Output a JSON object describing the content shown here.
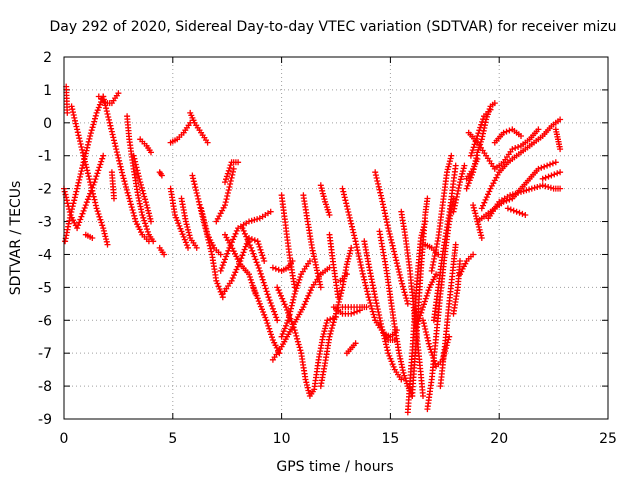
{
  "chart_data": {
    "type": "scatter",
    "title": "Day 292 of 2020, Sidereal Day-to-day VTEC variation (SDTVAR) for receiver mizu",
    "xlabel": "GPS time / hours",
    "ylabel": "SDTVAR / TECUs",
    "xlim": [
      0,
      25
    ],
    "ylim": [
      -9,
      2
    ],
    "xticks": [
      "0",
      "5",
      "10",
      "15",
      "20",
      "25"
    ],
    "yticks": [
      "-9",
      "-8",
      "-7",
      "-6",
      "-5",
      "-4",
      "-3",
      "-2",
      "-1",
      "0",
      "1",
      "2"
    ],
    "grid": true,
    "marker": "+",
    "color": "#ff0000",
    "tracks": [
      [
        [
          0.0,
          -2.0
        ],
        [
          0.3,
          -2.8
        ],
        [
          0.6,
          -3.2
        ],
        [
          1.0,
          -2.5
        ],
        [
          1.4,
          -1.8
        ],
        [
          1.8,
          -1.0
        ]
      ],
      [
        [
          0.05,
          -3.6
        ],
        [
          0.3,
          -2.8
        ],
        [
          0.6,
          -2.0
        ],
        [
          0.9,
          -1.2
        ],
        [
          1.2,
          -0.4
        ],
        [
          1.5,
          0.3
        ],
        [
          1.8,
          0.8
        ]
      ],
      [
        [
          0.1,
          1.1
        ],
        [
          0.15,
          0.3
        ]
      ],
      [
        [
          0.35,
          0.5
        ],
        [
          0.6,
          -0.2
        ],
        [
          0.9,
          -1.0
        ],
        [
          1.2,
          -1.8
        ],
        [
          1.5,
          -2.6
        ],
        [
          1.8,
          -3.2
        ],
        [
          2.0,
          -3.7
        ]
      ],
      [
        [
          1.0,
          -3.4
        ],
        [
          1.3,
          -3.5
        ]
      ],
      [
        [
          1.6,
          0.8
        ],
        [
          1.9,
          0.6
        ],
        [
          2.2,
          0.6
        ],
        [
          2.5,
          0.9
        ]
      ],
      [
        [
          1.8,
          0.8
        ],
        [
          2.1,
          0.0
        ],
        [
          2.4,
          -0.8
        ],
        [
          2.7,
          -1.6
        ],
        [
          3.0,
          -2.3
        ],
        [
          3.3,
          -3.0
        ],
        [
          3.6,
          -3.4
        ],
        [
          3.9,
          -3.6
        ]
      ],
      [
        [
          2.2,
          -1.5
        ],
        [
          2.3,
          -2.3
        ]
      ],
      [
        [
          2.9,
          0.2
        ],
        [
          3.0,
          -0.5
        ],
        [
          3.2,
          -1.4
        ],
        [
          3.4,
          -2.2
        ],
        [
          3.6,
          -2.8
        ],
        [
          3.9,
          -3.4
        ],
        [
          4.1,
          -3.6
        ]
      ],
      [
        [
          3.5,
          -0.5
        ],
        [
          3.8,
          -0.7
        ],
        [
          4.0,
          -0.9
        ]
      ],
      [
        [
          3.2,
          -1.0
        ],
        [
          3.5,
          -1.8
        ],
        [
          3.8,
          -2.5
        ],
        [
          4.0,
          -3.0
        ]
      ],
      [
        [
          4.4,
          -3.8
        ],
        [
          4.6,
          -4.0
        ]
      ],
      [
        [
          4.4,
          -1.5
        ],
        [
          4.5,
          -1.6
        ]
      ],
      [
        [
          4.9,
          -0.6
        ],
        [
          5.2,
          -0.5
        ],
        [
          5.5,
          -0.3
        ],
        [
          5.8,
          0.0
        ]
      ],
      [
        [
          5.8,
          0.3
        ],
        [
          6.0,
          0.0
        ],
        [
          6.3,
          -0.3
        ],
        [
          6.6,
          -0.6
        ]
      ],
      [
        [
          4.9,
          -2.0
        ],
        [
          5.1,
          -2.8
        ],
        [
          5.4,
          -3.3
        ],
        [
          5.7,
          -3.8
        ]
      ],
      [
        [
          5.4,
          -2.3
        ],
        [
          5.6,
          -3.0
        ],
        [
          5.8,
          -3.5
        ],
        [
          6.1,
          -3.8
        ]
      ],
      [
        [
          5.9,
          -1.6
        ],
        [
          6.2,
          -2.4
        ],
        [
          6.5,
          -3.2
        ],
        [
          6.8,
          -4.0
        ],
        [
          7.0,
          -4.8
        ],
        [
          7.3,
          -5.3
        ]
      ],
      [
        [
          6.3,
          -2.6
        ],
        [
          6.6,
          -3.4
        ],
        [
          6.9,
          -3.8
        ],
        [
          7.2,
          -4.0
        ]
      ],
      [
        [
          7.0,
          -3.0
        ],
        [
          7.4,
          -2.5
        ],
        [
          7.8,
          -1.4
        ]
      ],
      [
        [
          7.4,
          -1.8
        ],
        [
          7.7,
          -1.2
        ],
        [
          8.0,
          -1.2
        ]
      ],
      [
        [
          7.2,
          -4.5
        ],
        [
          7.6,
          -3.8
        ],
        [
          8.0,
          -3.2
        ],
        [
          8.5,
          -3.0
        ],
        [
          9.0,
          -2.9
        ],
        [
          9.5,
          -2.7
        ]
      ],
      [
        [
          7.4,
          -3.4
        ],
        [
          7.8,
          -3.9
        ],
        [
          8.1,
          -4.3
        ],
        [
          8.5,
          -4.6
        ],
        [
          8.8,
          -5.2
        ]
      ],
      [
        [
          7.3,
          -5.2
        ],
        [
          7.7,
          -4.8
        ],
        [
          8.1,
          -4.2
        ],
        [
          8.5,
          -3.5
        ],
        [
          8.9,
          -3.6
        ],
        [
          9.2,
          -4.2
        ]
      ],
      [
        [
          8.2,
          -3.2
        ],
        [
          8.6,
          -3.8
        ],
        [
          9.0,
          -4.5
        ],
        [
          9.4,
          -5.3
        ],
        [
          9.8,
          -6.0
        ]
      ],
      [
        [
          8.7,
          -5.0
        ],
        [
          9.0,
          -5.5
        ],
        [
          9.3,
          -6.0
        ],
        [
          9.6,
          -6.6
        ],
        [
          9.9,
          -7.0
        ]
      ],
      [
        [
          9.6,
          -4.4
        ],
        [
          10.0,
          -4.5
        ],
        [
          10.3,
          -4.4
        ],
        [
          10.5,
          -4.2
        ]
      ],
      [
        [
          9.6,
          -7.2
        ],
        [
          10.0,
          -6.8
        ],
        [
          10.5,
          -6.2
        ],
        [
          11.0,
          -5.6
        ],
        [
          11.4,
          -5.0
        ],
        [
          11.8,
          -4.6
        ],
        [
          12.2,
          -4.4
        ]
      ],
      [
        [
          10.0,
          -6.5
        ],
        [
          10.3,
          -6.0
        ],
        [
          10.6,
          -5.2
        ],
        [
          10.9,
          -4.6
        ],
        [
          11.3,
          -4.2
        ]
      ],
      [
        [
          9.8,
          -5.0
        ],
        [
          10.2,
          -5.6
        ],
        [
          10.6,
          -6.3
        ],
        [
          10.9,
          -7.0
        ],
        [
          11.1,
          -7.8
        ],
        [
          11.3,
          -8.3
        ],
        [
          11.5,
          -8.1
        ],
        [
          11.7,
          -7.2
        ],
        [
          11.9,
          -6.5
        ],
        [
          12.1,
          -6.0
        ],
        [
          12.5,
          -5.9
        ]
      ],
      [
        [
          10.0,
          -2.2
        ],
        [
          10.2,
          -3.2
        ],
        [
          10.4,
          -4.2
        ],
        [
          10.6,
          -5.0
        ]
      ],
      [
        [
          11.0,
          -2.2
        ],
        [
          11.2,
          -3.0
        ],
        [
          11.4,
          -3.8
        ],
        [
          11.6,
          -4.4
        ],
        [
          11.8,
          -5.0
        ]
      ],
      [
        [
          11.8,
          -8.0
        ],
        [
          12.0,
          -7.3
        ],
        [
          12.2,
          -6.5
        ],
        [
          12.5,
          -5.8
        ],
        [
          12.8,
          -5.0
        ],
        [
          13.0,
          -4.3
        ],
        [
          13.2,
          -3.8
        ]
      ],
      [
        [
          11.8,
          -1.9
        ],
        [
          12.0,
          -2.4
        ],
        [
          12.2,
          -2.8
        ]
      ],
      [
        [
          12.2,
          -3.4
        ],
        [
          12.4,
          -4.4
        ],
        [
          12.6,
          -5.3
        ]
      ],
      [
        [
          12.7,
          -4.8
        ],
        [
          13.0,
          -4.6
        ]
      ],
      [
        [
          12.4,
          -5.6
        ],
        [
          12.8,
          -5.8
        ],
        [
          13.2,
          -5.8
        ],
        [
          13.6,
          -5.7
        ]
      ],
      [
        [
          12.8,
          -5.6
        ],
        [
          13.2,
          -5.6
        ],
        [
          13.6,
          -5.6
        ],
        [
          13.9,
          -5.6
        ]
      ],
      [
        [
          13.0,
          -7.0
        ],
        [
          13.4,
          -6.7
        ]
      ],
      [
        [
          12.8,
          -2.0
        ],
        [
          13.1,
          -2.8
        ],
        [
          13.4,
          -3.6
        ],
        [
          13.7,
          -4.5
        ],
        [
          14.0,
          -5.3
        ],
        [
          14.3,
          -6.0
        ],
        [
          14.6,
          -6.3
        ],
        [
          14.9,
          -6.6
        ],
        [
          15.2,
          -6.6
        ]
      ],
      [
        [
          14.3,
          -1.5
        ],
        [
          14.6,
          -2.3
        ],
        [
          14.9,
          -3.2
        ],
        [
          15.2,
          -4.0
        ],
        [
          15.5,
          -4.8
        ],
        [
          15.8,
          -5.5
        ]
      ],
      [
        [
          14.5,
          -3.3
        ],
        [
          14.8,
          -4.4
        ],
        [
          15.0,
          -5.3
        ],
        [
          15.2,
          -6.2
        ],
        [
          15.4,
          -7.0
        ],
        [
          15.6,
          -7.6
        ],
        [
          15.8,
          -8.0
        ],
        [
          16.0,
          -8.3
        ]
      ],
      [
        [
          13.8,
          -3.6
        ],
        [
          14.0,
          -4.3
        ],
        [
          14.3,
          -5.3
        ],
        [
          14.6,
          -6.2
        ],
        [
          14.9,
          -7.0
        ],
        [
          15.2,
          -7.5
        ],
        [
          15.5,
          -7.8
        ]
      ],
      [
        [
          14.7,
          -6.4
        ],
        [
          15.0,
          -6.5
        ],
        [
          15.3,
          -6.3
        ]
      ],
      [
        [
          15.5,
          -2.7
        ],
        [
          15.7,
          -3.5
        ],
        [
          15.9,
          -4.5
        ],
        [
          16.1,
          -5.8
        ],
        [
          16.3,
          -7.0
        ],
        [
          16.5,
          -8.3
        ]
      ],
      [
        [
          15.8,
          -8.8
        ],
        [
          16.0,
          -7.0
        ],
        [
          16.2,
          -5.0
        ],
        [
          16.4,
          -3.5
        ],
        [
          16.6,
          -3.0
        ]
      ],
      [
        [
          16.0,
          -8.3
        ],
        [
          16.2,
          -6.5
        ],
        [
          16.4,
          -4.5
        ],
        [
          16.6,
          -2.8
        ],
        [
          16.7,
          -2.3
        ]
      ],
      [
        [
          16.2,
          -6.2
        ],
        [
          16.5,
          -5.6
        ],
        [
          16.8,
          -5.0
        ],
        [
          17.1,
          -4.6
        ]
      ],
      [
        [
          16.6,
          -3.7
        ],
        [
          16.9,
          -3.8
        ],
        [
          17.2,
          -4.0
        ]
      ],
      [
        [
          16.7,
          -8.7
        ],
        [
          16.9,
          -7.8
        ],
        [
          17.1,
          -6.5
        ],
        [
          17.3,
          -5.2
        ],
        [
          17.5,
          -4.0
        ],
        [
          17.7,
          -3.0
        ],
        [
          17.9,
          -2.3
        ]
      ],
      [
        [
          16.5,
          -6.0
        ],
        [
          16.8,
          -6.8
        ],
        [
          17.1,
          -7.4
        ],
        [
          17.4,
          -7.2
        ],
        [
          17.7,
          -6.5
        ]
      ],
      [
        [
          16.9,
          -4.5
        ],
        [
          17.2,
          -3.5
        ],
        [
          17.4,
          -2.5
        ],
        [
          17.6,
          -1.5
        ],
        [
          17.8,
          -1.0
        ]
      ],
      [
        [
          17.0,
          -6.0
        ],
        [
          17.2,
          -5.0
        ],
        [
          17.4,
          -4.0
        ],
        [
          17.7,
          -2.8
        ],
        [
          18.0,
          -1.3
        ]
      ],
      [
        [
          17.3,
          -8.0
        ],
        [
          17.5,
          -6.8
        ],
        [
          17.7,
          -5.5
        ],
        [
          17.9,
          -4.3
        ],
        [
          18.0,
          -3.7
        ]
      ],
      [
        [
          17.9,
          -5.8
        ],
        [
          18.1,
          -5.0
        ],
        [
          18.2,
          -4.2
        ]
      ],
      [
        [
          17.9,
          -2.7
        ],
        [
          18.2,
          -1.8
        ],
        [
          18.4,
          -1.3
        ]
      ],
      [
        [
          18.2,
          -4.6
        ],
        [
          18.5,
          -4.2
        ],
        [
          18.8,
          -4.0
        ]
      ],
      [
        [
          18.5,
          -1.7
        ],
        [
          18.8,
          -1.4
        ],
        [
          19.0,
          -1.1
        ]
      ],
      [
        [
          18.5,
          -2.0
        ],
        [
          18.8,
          -1.5
        ],
        [
          19.0,
          -0.9
        ],
        [
          19.2,
          -0.5
        ],
        [
          19.4,
          0.1
        ],
        [
          19.6,
          0.5
        ],
        [
          19.8,
          0.6
        ]
      ],
      [
        [
          18.7,
          -1.0
        ],
        [
          19.0,
          -0.4
        ],
        [
          19.3,
          0.2
        ],
        [
          19.6,
          0.4
        ]
      ],
      [
        [
          18.6,
          -0.3
        ],
        [
          19.0,
          -0.6
        ],
        [
          19.4,
          -1.0
        ],
        [
          19.8,
          -1.4
        ],
        [
          20.2,
          -1.2
        ],
        [
          20.6,
          -0.8
        ],
        [
          21.0,
          -0.7
        ],
        [
          21.4,
          -0.5
        ],
        [
          21.8,
          -0.2
        ]
      ],
      [
        [
          19.8,
          -0.6
        ],
        [
          20.2,
          -0.3
        ],
        [
          20.6,
          -0.2
        ],
        [
          21.0,
          -0.4
        ]
      ],
      [
        [
          19.2,
          -2.6
        ],
        [
          19.6,
          -2.0
        ],
        [
          20.0,
          -1.5
        ],
        [
          20.4,
          -1.2
        ],
        [
          20.8,
          -1.0
        ],
        [
          21.2,
          -0.8
        ],
        [
          21.6,
          -0.6
        ],
        [
          22.0,
          -0.4
        ],
        [
          22.4,
          -0.1
        ],
        [
          22.8,
          0.1
        ]
      ],
      [
        [
          18.8,
          -2.5
        ],
        [
          19.0,
          -3.0
        ],
        [
          19.2,
          -3.5
        ]
      ],
      [
        [
          19.0,
          -3.0
        ],
        [
          19.4,
          -2.8
        ],
        [
          19.8,
          -2.6
        ],
        [
          20.2,
          -2.4
        ],
        [
          20.6,
          -2.3
        ],
        [
          21.0,
          -2.0
        ],
        [
          21.4,
          -1.7
        ],
        [
          21.8,
          -1.4
        ],
        [
          22.2,
          -1.3
        ],
        [
          22.6,
          -1.2
        ]
      ],
      [
        [
          19.5,
          -2.9
        ],
        [
          20.0,
          -2.4
        ],
        [
          20.5,
          -2.2
        ],
        [
          21.0,
          -2.1
        ],
        [
          21.5,
          -2.0
        ],
        [
          22.0,
          -1.9
        ],
        [
          22.5,
          -2.0
        ],
        [
          22.8,
          -2.0
        ]
      ],
      [
        [
          20.4,
          -2.6
        ],
        [
          20.8,
          -2.7
        ],
        [
          21.2,
          -2.8
        ]
      ],
      [
        [
          22.0,
          -1.7
        ],
        [
          22.4,
          -1.6
        ],
        [
          22.8,
          -1.5
        ]
      ],
      [
        [
          22.6,
          -0.2
        ],
        [
          22.7,
          -0.5
        ],
        [
          22.8,
          -0.8
        ]
      ]
    ]
  }
}
